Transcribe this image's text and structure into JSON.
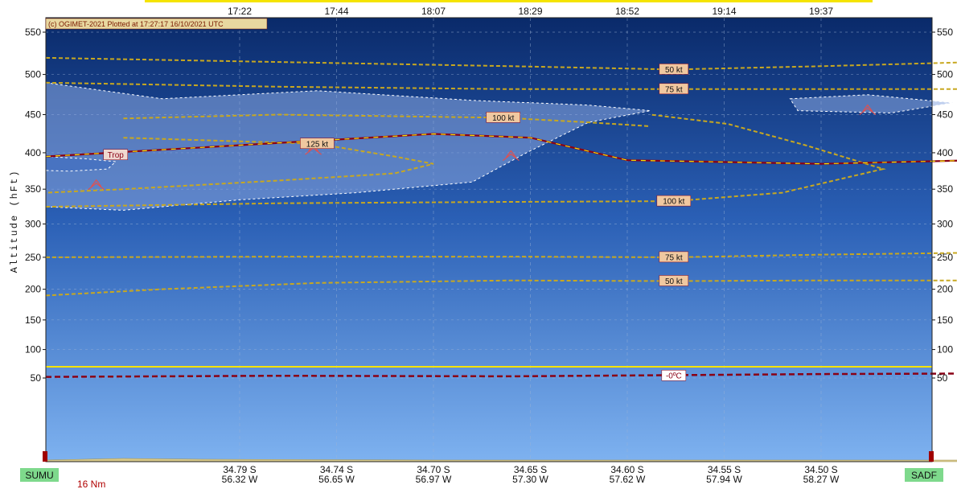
{
  "chart_data": {
    "type": "cross-section",
    "credit": "(c) OGIMET-2021 Plotted at 17:27:17 16/10/2021 UTC",
    "ylabel": "Altitude (hFt)",
    "yticks": [
      550,
      500,
      450,
      400,
      350,
      300,
      250,
      200,
      150,
      100,
      50
    ],
    "times": [
      {
        "t": 0.25,
        "label": "17:22"
      },
      {
        "t": 0.375,
        "label": "17:44"
      },
      {
        "t": 0.5,
        "label": "18:07"
      },
      {
        "t": 0.625,
        "label": "18:29"
      },
      {
        "t": 0.75,
        "label": "18:52"
      },
      {
        "t": 0.875,
        "label": "19:14"
      },
      {
        "t": 1.0,
        "label": "19:37"
      }
    ],
    "positions": [
      {
        "t": 0.25,
        "lat": "34.79 S",
        "lon": "56.32 W"
      },
      {
        "t": 0.375,
        "lat": "34.74 S",
        "lon": "56.65 W"
      },
      {
        "t": 0.5,
        "lat": "34.70 S",
        "lon": "56.97 W"
      },
      {
        "t": 0.625,
        "lat": "34.65 S",
        "lon": "57.30 W"
      },
      {
        "t": 0.75,
        "lat": "34.60 S",
        "lon": "57.62 W"
      },
      {
        "t": 0.875,
        "lat": "34.55 S",
        "lon": "57.94 W"
      },
      {
        "t": 1.0,
        "lat": "34.50 S",
        "lon": "58.27 W"
      }
    ],
    "departure": "SUMU",
    "arrival": "SADF",
    "distance_note": "16 Nm",
    "cruise_level": 70,
    "tropopause": {
      "label": "Trop",
      "points": [
        [
          0,
          395
        ],
        [
          0.5,
          425
        ],
        [
          0.625,
          420
        ],
        [
          0.75,
          390
        ],
        [
          1.0,
          385
        ],
        [
          1.2,
          390
        ]
      ]
    },
    "freezing_level": {
      "label": "-0ºC",
      "points": [
        [
          0,
          52
        ],
        [
          0.3,
          54
        ],
        [
          0.6,
          53
        ],
        [
          0.8,
          55
        ],
        [
          1.0,
          57
        ],
        [
          1.2,
          58
        ]
      ]
    },
    "isotachs": [
      {
        "label": "50 kt",
        "label_at": [
          0.81,
          506
        ],
        "points": [
          [
            0,
            520
          ],
          [
            0.3,
            515
          ],
          [
            0.6,
            510
          ],
          [
            0.81,
            506
          ],
          [
            1.0,
            510
          ],
          [
            1.2,
            515
          ]
        ]
      },
      {
        "label": "75 kt",
        "label_at": [
          0.81,
          482
        ],
        "points": [
          [
            0,
            490
          ],
          [
            0.3,
            485
          ],
          [
            0.6,
            482
          ],
          [
            0.81,
            482
          ],
          [
            1.0,
            482
          ],
          [
            1.2,
            482
          ]
        ]
      },
      {
        "label": "100 kt",
        "label_at": [
          0.59,
          446
        ],
        "points": [
          [
            0.1,
            445
          ],
          [
            0.3,
            450
          ],
          [
            0.59,
            446
          ],
          [
            0.7,
            440
          ],
          [
            0.78,
            435
          ]
        ]
      },
      {
        "label": "125 kt",
        "label_at": [
          0.35,
          412
        ],
        "points": [
          [
            0.1,
            420
          ],
          [
            0.35,
            412
          ],
          [
            0.45,
            395
          ],
          [
            0.5,
            385
          ],
          [
            0.45,
            372
          ],
          [
            0.3,
            362
          ],
          [
            0.1,
            350
          ],
          [
            0,
            345
          ]
        ]
      },
      {
        "label": "100 kt",
        "label_at": [
          0.81,
          333
        ],
        "points": [
          [
            0,
            325
          ],
          [
            0.3,
            330
          ],
          [
            0.6,
            332
          ],
          [
            0.81,
            333
          ],
          [
            0.95,
            345
          ],
          [
            1.08,
            378
          ],
          [
            0.98,
            410
          ],
          [
            0.88,
            438
          ],
          [
            0.78,
            450
          ]
        ]
      },
      {
        "label": "75 kt",
        "label_at": [
          0.81,
          250
        ],
        "points": [
          [
            0,
            250
          ],
          [
            0.3,
            251
          ],
          [
            0.6,
            251
          ],
          [
            0.81,
            250
          ],
          [
            1.0,
            254
          ],
          [
            1.2,
            257
          ]
        ]
      },
      {
        "label": "50 kt",
        "label_at": [
          0.81,
          213
        ],
        "points": [
          [
            0,
            190
          ],
          [
            0.15,
            200
          ],
          [
            0.35,
            210
          ],
          [
            0.6,
            214
          ],
          [
            0.81,
            213
          ],
          [
            1.0,
            214
          ],
          [
            1.2,
            214
          ]
        ]
      }
    ],
    "turbulence_symbols": [
      [
        0.065,
        355
      ],
      [
        0.345,
        403
      ],
      [
        0.6,
        395
      ],
      [
        1.06,
        455
      ]
    ],
    "terrain": {
      "points": [
        [
          0,
          1
        ],
        [
          0.1,
          2
        ],
        [
          0.2,
          1.5
        ],
        [
          0.5,
          1
        ],
        [
          0.8,
          1
        ],
        [
          1.2,
          1
        ]
      ]
    }
  }
}
